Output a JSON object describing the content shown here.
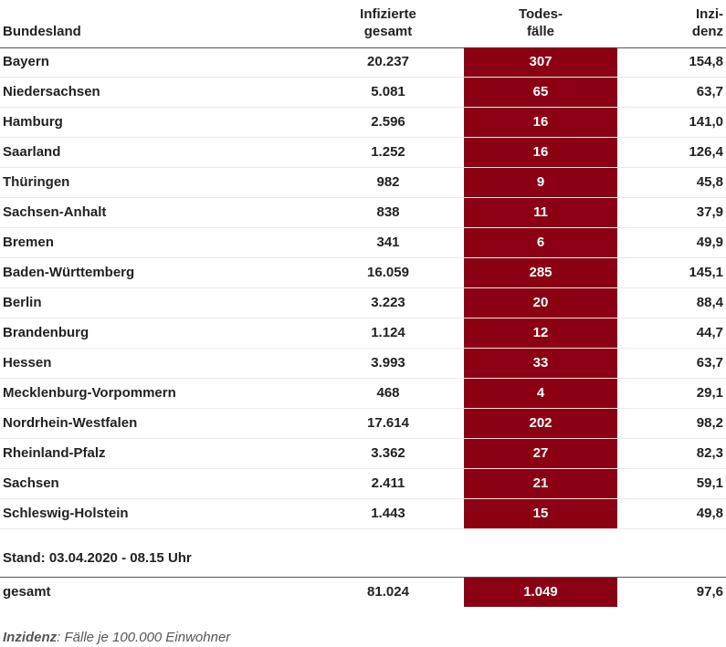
{
  "header": {
    "col_bundesland": "Bundesland",
    "col_infizierte_line1": "Infizierte",
    "col_infizierte_line2": "gesamt",
    "col_todes_line1": "Todes-",
    "col_todes_line2": "fälle",
    "col_inzidenz_line1": "Inzi-",
    "col_inzidenz_line2": "denz"
  },
  "rows": [
    {
      "state": "Bayern",
      "infected": "20.237",
      "deaths": "307",
      "incidence": "154,8"
    },
    {
      "state": "Niedersachsen",
      "infected": "5.081",
      "deaths": "65",
      "incidence": "63,7"
    },
    {
      "state": "Hamburg",
      "infected": "2.596",
      "deaths": "16",
      "incidence": "141,0"
    },
    {
      "state": "Saarland",
      "infected": "1.252",
      "deaths": "16",
      "incidence": "126,4"
    },
    {
      "state": "Thüringen",
      "infected": "982",
      "deaths": "9",
      "incidence": "45,8"
    },
    {
      "state": "Sachsen-Anhalt",
      "infected": "838",
      "deaths": "11",
      "incidence": "37,9"
    },
    {
      "state": "Bremen",
      "infected": "341",
      "deaths": "6",
      "incidence": "49,9"
    },
    {
      "state": "Baden-Württemberg",
      "infected": "16.059",
      "deaths": "285",
      "incidence": "145,1"
    },
    {
      "state": "Berlin",
      "infected": "3.223",
      "deaths": "20",
      "incidence": "88,4"
    },
    {
      "state": "Brandenburg",
      "infected": "1.124",
      "deaths": "12",
      "incidence": "44,7"
    },
    {
      "state": "Hessen",
      "infected": "3.993",
      "deaths": "33",
      "incidence": "63,7"
    },
    {
      "state": "Mecklenburg-Vorpommern",
      "infected": "468",
      "deaths": "4",
      "incidence": "29,1"
    },
    {
      "state": "Nordrhein-Westfalen",
      "infected": "17.614",
      "deaths": "202",
      "incidence": "98,2"
    },
    {
      "state": "Rheinland-Pfalz",
      "infected": "3.362",
      "deaths": "27",
      "incidence": "82,3"
    },
    {
      "state": "Sachsen",
      "infected": "2.411",
      "deaths": "21",
      "incidence": "59,1"
    },
    {
      "state": "Schleswig-Holstein",
      "infected": "1.443",
      "deaths": "15",
      "incidence": "49,8"
    }
  ],
  "stand": "Stand: 03.04.2020 - 08.15 Uhr",
  "total": {
    "label": "gesamt",
    "infected": "81.024",
    "deaths": "1.049",
    "incidence": "97,6"
  },
  "note": {
    "term": "Inzidenz",
    "text": ": Fälle je 100.000 Einwohner"
  },
  "colors": {
    "deaths_background": "#8b0013"
  }
}
